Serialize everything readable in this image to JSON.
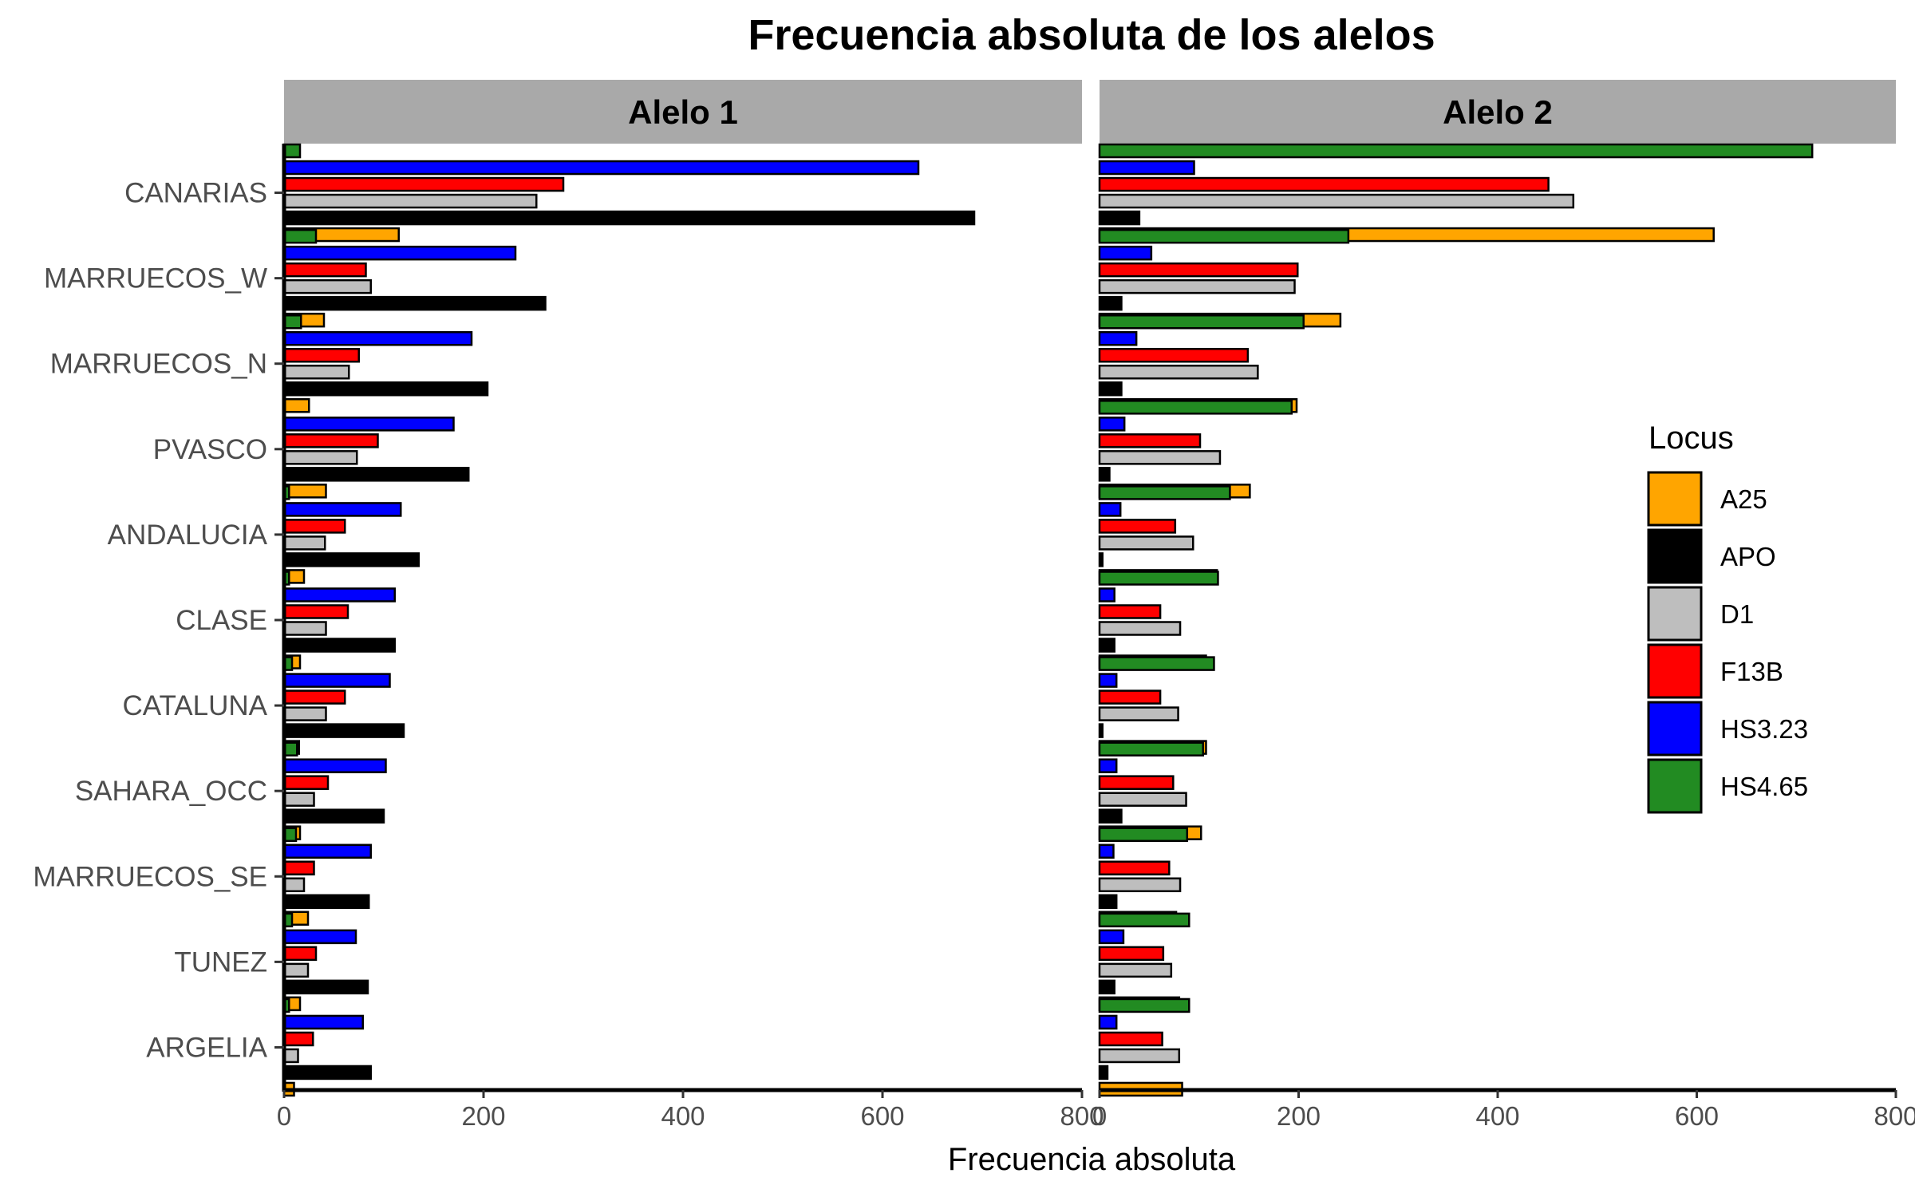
{
  "chart_data": {
    "type": "bar",
    "orientation": "horizontal",
    "title": "Frecuencia absoluta de los alelos",
    "xlabel": "Frecuencia absoluta",
    "ylabel": "",
    "xlim": [
      0,
      800
    ],
    "x_ticks": [
      "0",
      "200",
      "400",
      "600",
      "800"
    ],
    "grid": false,
    "legend_title": "Locus",
    "legend_position": "right",
    "categories": [
      "CANARIAS",
      "MARRUECOS_W",
      "MARRUECOS_N",
      "PVASCO",
      "ANDALUCIA",
      "CLASE",
      "CATALUNA",
      "SAHARA_OCC",
      "MARRUECOS_SE",
      "TUNEZ",
      "ARGELIA"
    ],
    "series": [
      {
        "name": "A25",
        "color": "#FFA500"
      },
      {
        "name": "APO",
        "color": "#000000"
      },
      {
        "name": "D1",
        "color": "#BEBEBE"
      },
      {
        "name": "F13B",
        "color": "#FF0000"
      },
      {
        "name": "HS3.23",
        "color": "#0000FF"
      },
      {
        "name": "HS4.65",
        "color": "#228B22"
      }
    ],
    "panels": [
      {
        "label": "Alelo 1",
        "values": {
          "A25": [
            115,
            40,
            25,
            42,
            20,
            16,
            15,
            16,
            24,
            16,
            10
          ],
          "APO": [
            692,
            262,
            204,
            185,
            135,
            111,
            120,
            100,
            85,
            84,
            87
          ],
          "D1": [
            253,
            87,
            65,
            73,
            41,
            42,
            42,
            30,
            20,
            24,
            14
          ],
          "F13B": [
            280,
            82,
            75,
            94,
            61,
            64,
            61,
            44,
            30,
            32,
            29
          ],
          "HS3.23": [
            636,
            232,
            188,
            170,
            117,
            111,
            106,
            102,
            87,
            72,
            79
          ],
          "HS4.65": [
            16,
            32,
            17,
            0,
            5,
            5,
            8,
            13,
            12,
            8,
            5
          ]
        }
      },
      {
        "label": "Alelo 2",
        "values": {
          "A25": [
            617,
            242,
            198,
            151,
            118,
            107,
            107,
            102,
            77,
            80,
            83
          ],
          "APO": [
            40,
            22,
            22,
            10,
            3,
            15,
            3,
            22,
            17,
            15,
            8
          ],
          "D1": [
            476,
            196,
            159,
            121,
            94,
            81,
            79,
            87,
            81,
            72,
            80
          ],
          "F13B": [
            451,
            199,
            149,
            101,
            76,
            61,
            61,
            74,
            70,
            64,
            63
          ],
          "HS3.23": [
            95,
            52,
            37,
            25,
            21,
            15,
            17,
            17,
            14,
            24,
            17
          ],
          "HS4.65": [
            716,
            250,
            205,
            193,
            131,
            119,
            115,
            104,
            88,
            90,
            90
          ]
        }
      }
    ]
  }
}
